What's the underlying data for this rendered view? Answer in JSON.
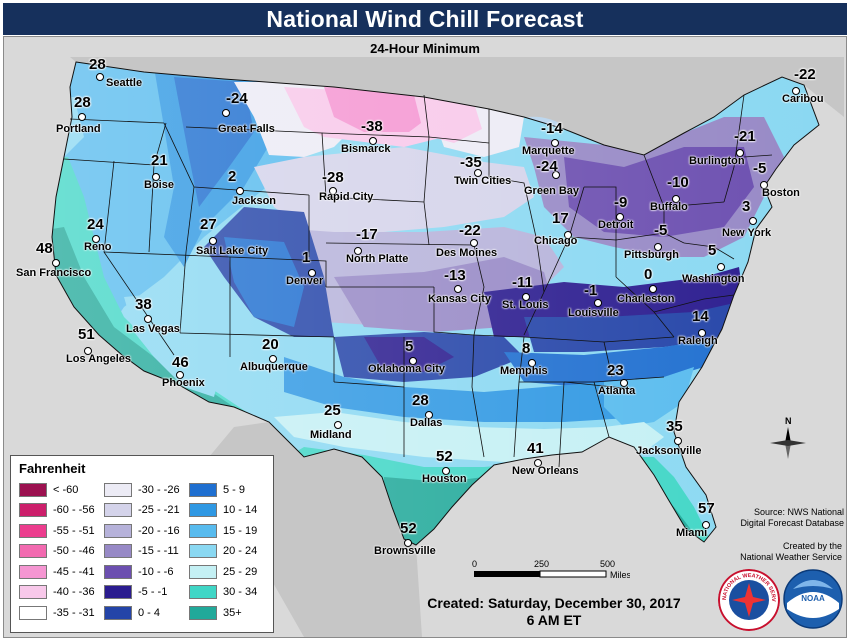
{
  "header": {
    "title": "National Wind Chill Forecast",
    "subtitle": "24-Hour Minimum"
  },
  "cities": [
    {
      "name": "Seattle",
      "value": "28"
    },
    {
      "name": "Portland",
      "value": "28"
    },
    {
      "name": "Great Falls",
      "value": "-24"
    },
    {
      "name": "Bismarck",
      "value": "-38"
    },
    {
      "name": "Marquette",
      "value": "-14"
    },
    {
      "name": "Caribou",
      "value": "-22"
    },
    {
      "name": "Boise",
      "value": "21"
    },
    {
      "name": "Jackson",
      "value": "2"
    },
    {
      "name": "Rapid City",
      "value": "-28"
    },
    {
      "name": "Twin Cities",
      "value": "-35"
    },
    {
      "name": "Green Bay",
      "value": "-24"
    },
    {
      "name": "Burlington",
      "value": "-21"
    },
    {
      "name": "Boston",
      "value": "-5"
    },
    {
      "name": "Buffalo",
      "value": "-10"
    },
    {
      "name": "Detroit",
      "value": "-9"
    },
    {
      "name": "Reno",
      "value": "24"
    },
    {
      "name": "Salt Lake City",
      "value": "27"
    },
    {
      "name": "North Platte",
      "value": "-17"
    },
    {
      "name": "Des Moines",
      "value": "-22"
    },
    {
      "name": "Chicago",
      "value": "17"
    },
    {
      "name": "New York",
      "value": "3"
    },
    {
      "name": "Pittsburgh",
      "value": "-5"
    },
    {
      "name": "San Francisco",
      "value": "48"
    },
    {
      "name": "Denver",
      "value": "1"
    },
    {
      "name": "Kansas City",
      "value": "-13"
    },
    {
      "name": "St. Louis",
      "value": "-11"
    },
    {
      "name": "Louisville",
      "value": "-1"
    },
    {
      "name": "Charleston",
      "value": "0"
    },
    {
      "name": "Washington",
      "value": "5"
    },
    {
      "name": "Las Vegas",
      "value": "38"
    },
    {
      "name": "Los Angeles",
      "value": "51"
    },
    {
      "name": "Phoenix",
      "value": "46"
    },
    {
      "name": "Albuquerque",
      "value": "20"
    },
    {
      "name": "Oklahoma City",
      "value": "5"
    },
    {
      "name": "Memphis",
      "value": "8"
    },
    {
      "name": "Raleigh",
      "value": "14"
    },
    {
      "name": "Atlanta",
      "value": "23"
    },
    {
      "name": "Midland",
      "value": "25"
    },
    {
      "name": "Dallas",
      "value": "28"
    },
    {
      "name": "Jacksonville",
      "value": "35"
    },
    {
      "name": "Houston",
      "value": "52"
    },
    {
      "name": "New Orleans",
      "value": "41"
    },
    {
      "name": "Miami",
      "value": "57"
    },
    {
      "name": "Brownsville",
      "value": "52"
    }
  ],
  "legend": {
    "title": "Fahrenheit",
    "items": [
      {
        "label": "< -60",
        "color": "#9c1150"
      },
      {
        "label": "-60 - -56",
        "color": "#cc1f6b"
      },
      {
        "label": "-55 - -51",
        "color": "#ec3d8e"
      },
      {
        "label": "-50 - -46",
        "color": "#f26ab0"
      },
      {
        "label": "-45 - -41",
        "color": "#f596d2"
      },
      {
        "label": "-40 - -36",
        "color": "#f8c8ea"
      },
      {
        "label": "-35 - -31",
        "color": "#ffffff"
      },
      {
        "label": "-30 - -26",
        "color": "#ecebf5"
      },
      {
        "label": "-25 - -21",
        "color": "#d4d3ea"
      },
      {
        "label": "-20 - -16",
        "color": "#b6b2da"
      },
      {
        "label": "-15 - -11",
        "color": "#9789c6"
      },
      {
        "label": "-10 - -6",
        "color": "#6c4fb0"
      },
      {
        "label": "-5 - -1",
        "color": "#2b1c8f"
      },
      {
        "label": "0 - 4",
        "color": "#2444a8"
      },
      {
        "label": "5 - 9",
        "color": "#1f6fd0"
      },
      {
        "label": "10 - 14",
        "color": "#2f98e3"
      },
      {
        "label": "15 - 19",
        "color": "#58bbee"
      },
      {
        "label": "20 - 24",
        "color": "#8ad8f2"
      },
      {
        "label": "25 - 29",
        "color": "#c4f0f4"
      },
      {
        "label": "30 - 34",
        "color": "#40d6c6"
      },
      {
        "label": "35+",
        "color": "#21a99a"
      }
    ]
  },
  "scale": {
    "ticks": [
      "0",
      "250",
      "500"
    ],
    "unit": "Miles"
  },
  "compass": {
    "label": "N"
  },
  "source": {
    "line1": "Source: NWS National",
    "line2": "Digital Forecast Database"
  },
  "creator": {
    "line1": "Created by the",
    "line2": "National Weather Service"
  },
  "created": {
    "line1": "Created:  Saturday, December 30, 2017",
    "line2": "6 AM ET"
  },
  "logos": {
    "nws_text": "NATIONAL WEATHER SERVICE",
    "noaa_text": "NOAA"
  }
}
